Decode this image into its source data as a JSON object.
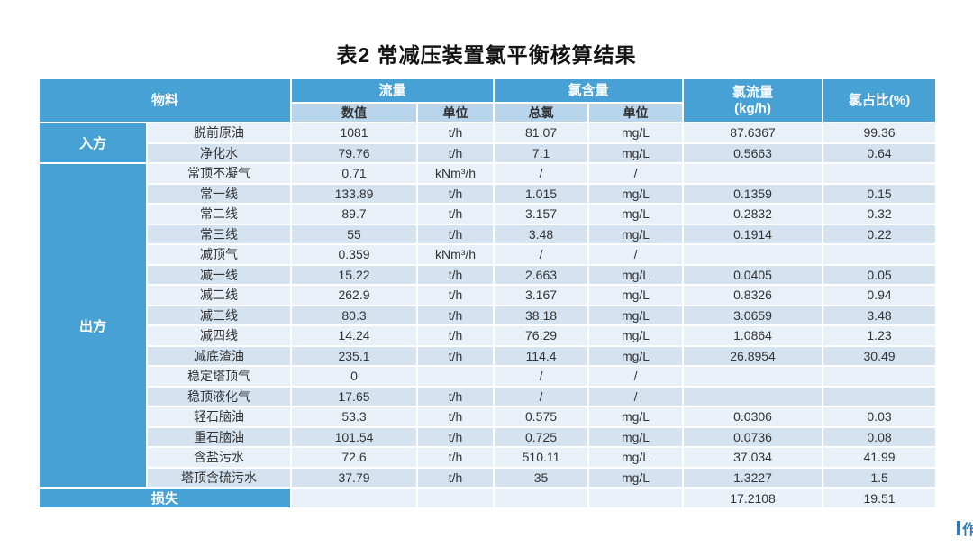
{
  "title": "表2  常减压装置氯平衡核算结果",
  "watermark": {
    "text": "作"
  },
  "colors": {
    "header_blue": "#47a1d5",
    "subheader_blue": "#b9d5ec",
    "row_light": "#e9f0f8",
    "row_dark": "#d5e2f0",
    "header_text": "#ffffff",
    "body_text": "#333333",
    "watermark_blue": "#2e7bbb"
  },
  "table": {
    "headers": {
      "material": "物料",
      "flow": "流量",
      "flow_value": "数值",
      "flow_unit": "单位",
      "chlorine_content": "氯含量",
      "total_chlorine": "总氯",
      "chlorine_unit": "单位",
      "chlorine_flow_line1": "氯流量",
      "chlorine_flow_line2": "(kg/h)",
      "chlorine_ratio": "氯占比(%)"
    },
    "groups": [
      {
        "id": "in",
        "label": "入方",
        "rows": [
          [
            "脱前原油",
            "1081",
            "t/h",
            "81.07",
            "mg/L",
            "87.6367",
            "99.36"
          ],
          [
            "净化水",
            "79.76",
            "t/h",
            "7.1",
            "mg/L",
            "0.5663",
            "0.64"
          ]
        ]
      },
      {
        "id": "out",
        "label": "出方",
        "rows": [
          [
            "常顶不凝气",
            "0.71",
            "kNm³/h",
            "/",
            "/",
            "",
            ""
          ],
          [
            "常一线",
            "133.89",
            "t/h",
            "1.015",
            "mg/L",
            "0.1359",
            "0.15"
          ],
          [
            "常二线",
            "89.7",
            "t/h",
            "3.157",
            "mg/L",
            "0.2832",
            "0.32"
          ],
          [
            "常三线",
            "55",
            "t/h",
            "3.48",
            "mg/L",
            "0.1914",
            "0.22"
          ],
          [
            "减顶气",
            "0.359",
            "kNm³/h",
            "/",
            "/",
            "",
            ""
          ],
          [
            "减一线",
            "15.22",
            "t/h",
            "2.663",
            "mg/L",
            "0.0405",
            "0.05"
          ],
          [
            "减二线",
            "262.9",
            "t/h",
            "3.167",
            "mg/L",
            "0.8326",
            "0.94"
          ],
          [
            "减三线",
            "80.3",
            "t/h",
            "38.18",
            "mg/L",
            "3.0659",
            "3.48"
          ],
          [
            "减四线",
            "14.24",
            "t/h",
            "76.29",
            "mg/L",
            "1.0864",
            "1.23"
          ],
          [
            "减底渣油",
            "235.1",
            "t/h",
            "114.4",
            "mg/L",
            "26.8954",
            "30.49"
          ],
          [
            "稳定塔顶气",
            "0",
            "",
            "/",
            "/",
            "",
            ""
          ],
          [
            "稳顶液化气",
            "17.65",
            "t/h",
            "/",
            "/",
            "",
            ""
          ],
          [
            "轻石脑油",
            "53.3",
            "t/h",
            "0.575",
            "mg/L",
            "0.0306",
            "0.03"
          ],
          [
            "重石脑油",
            "101.54",
            "t/h",
            "0.725",
            "mg/L",
            "0.0736",
            "0.08"
          ],
          [
            "含盐污水",
            "72.6",
            "t/h",
            "510.11",
            "mg/L",
            "37.034",
            "41.99"
          ],
          [
            "塔顶含硫污水",
            "37.79",
            "t/h",
            "35",
            "mg/L",
            "1.3227",
            "1.5"
          ]
        ]
      }
    ],
    "loss_row": {
      "label": "损失",
      "flow_value": "",
      "flow_unit": "",
      "total_chlorine": "",
      "chlorine_unit": "",
      "chlorine_flow": "17.2108",
      "chlorine_ratio": "19.51"
    }
  }
}
